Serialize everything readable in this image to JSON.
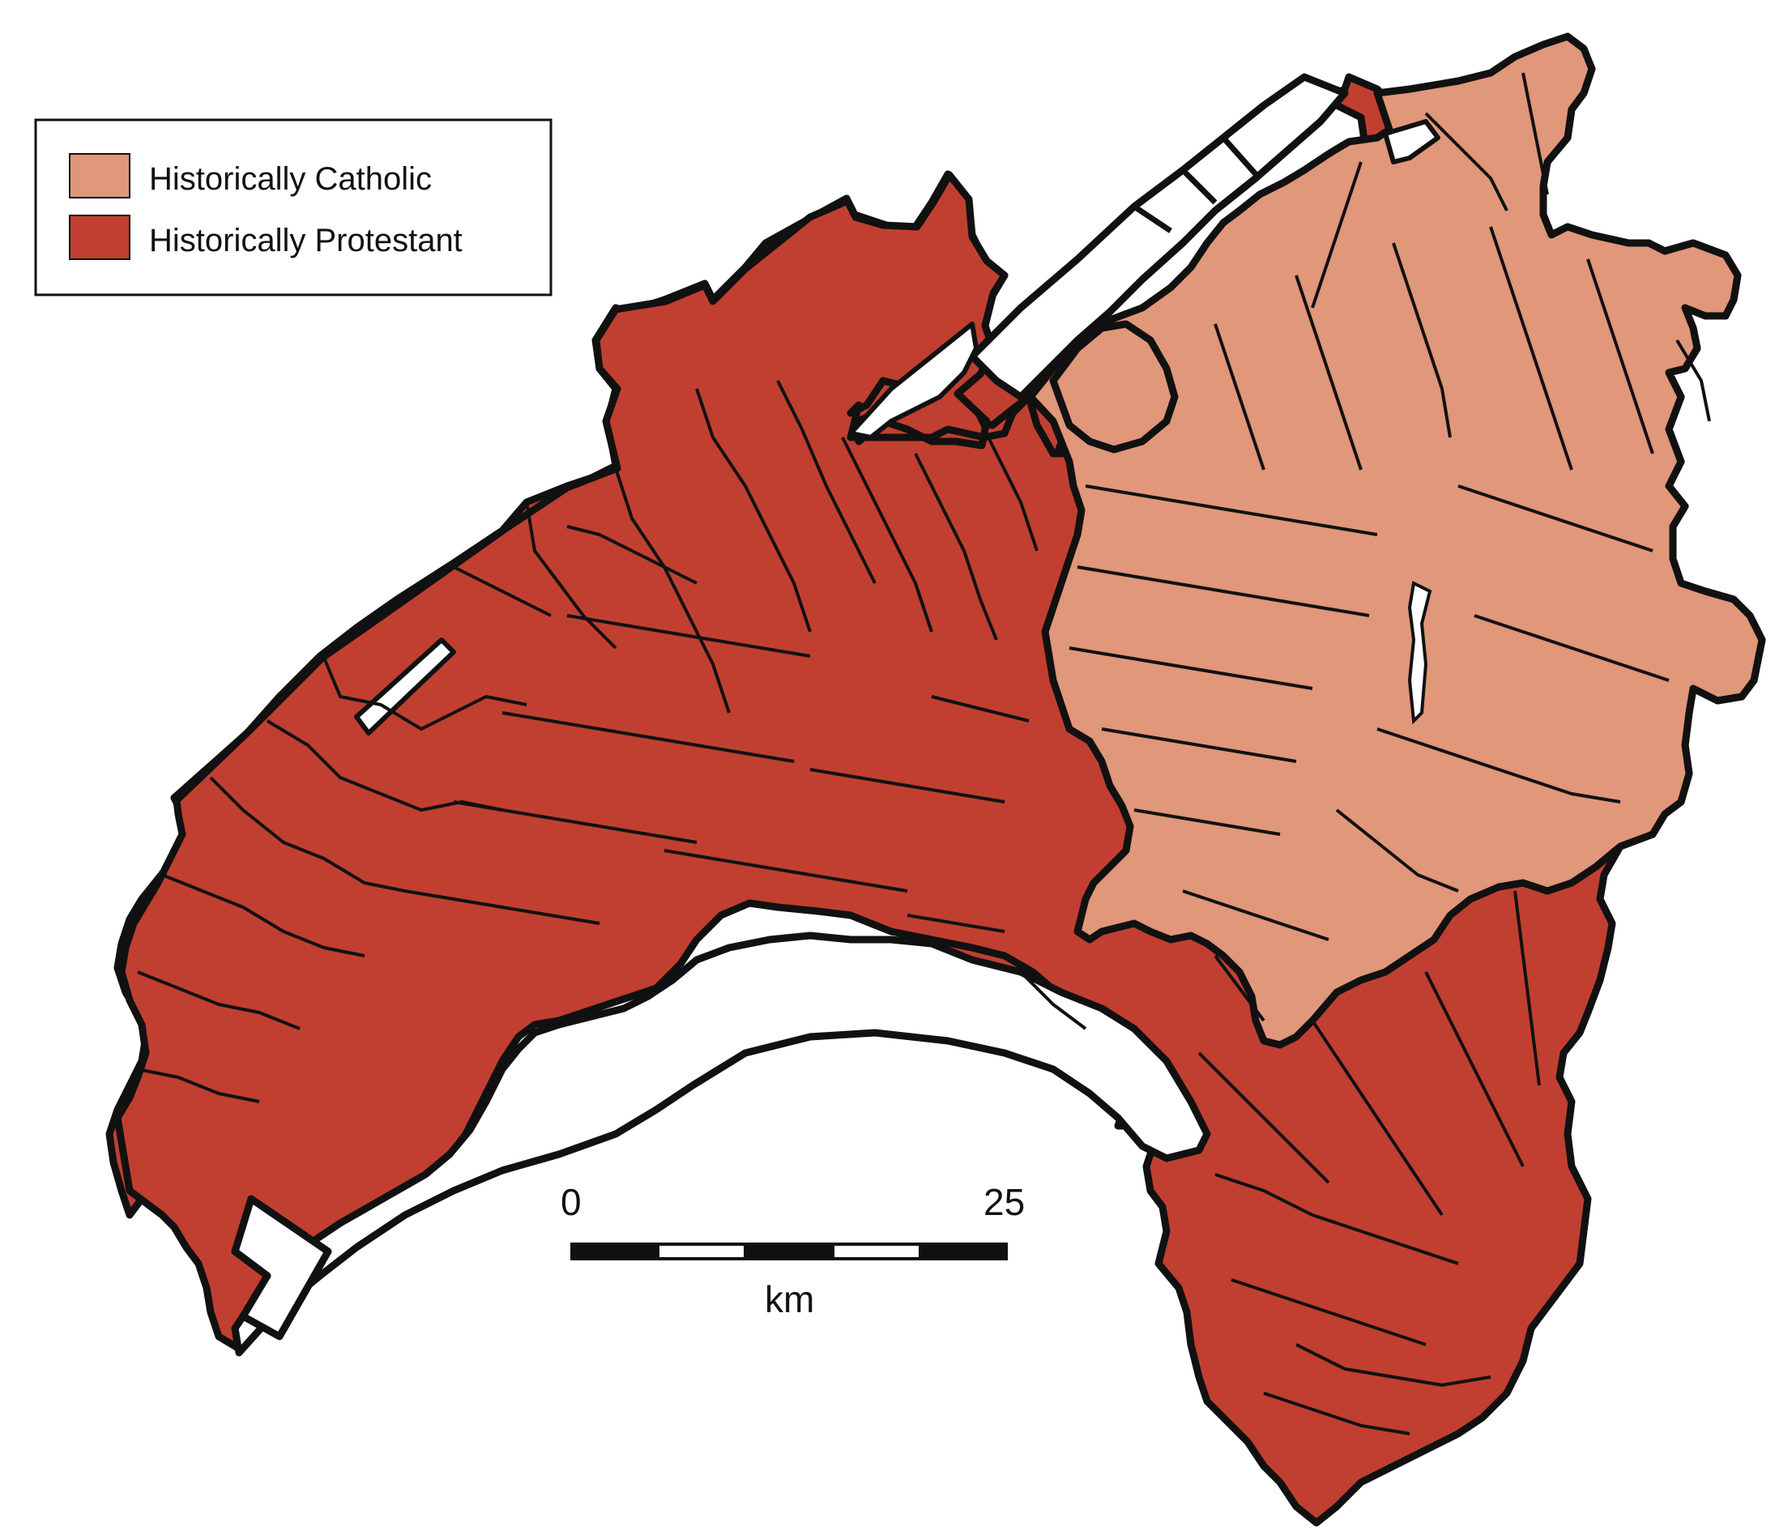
{
  "legend": {
    "items": [
      {
        "label": "Historically Catholic",
        "color": "#e0977a"
      },
      {
        "label": "Historically Protestant",
        "color": "#c13f31"
      }
    ]
  },
  "scale_bar": {
    "start_label": "0",
    "end_label": "25",
    "unit": "km"
  },
  "colors": {
    "catholic": "#e0977a",
    "protestant": "#c13f31",
    "border": "#111111",
    "background": "#ffffff"
  }
}
